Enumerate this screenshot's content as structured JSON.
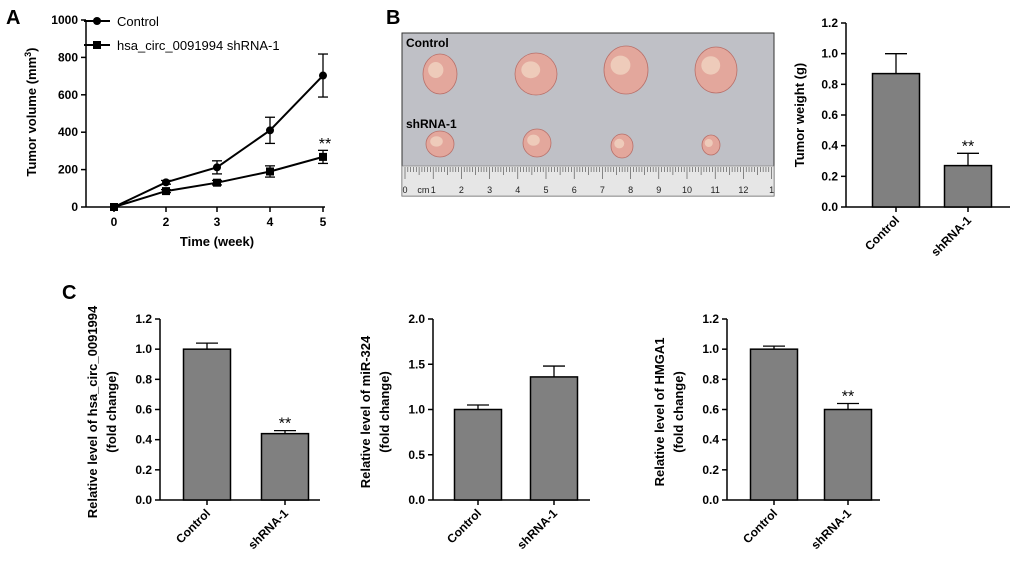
{
  "panels": {
    "a": "A",
    "b": "B",
    "c": "C"
  },
  "photo": {
    "row_control": "Control",
    "row_shrna": "shRNA-1",
    "ruler_unit": "cm",
    "ruler_numbers": [
      "0",
      "1",
      "2",
      "3",
      "4",
      "5",
      "6",
      "7",
      "8",
      "9",
      "10",
      "11",
      "12",
      "1"
    ],
    "colors": {
      "background": "#bfc0c6",
      "tumor": "#e3a79c",
      "tumor_light": "#f0d4c2",
      "ruler": "#e6e6e6"
    }
  },
  "chart_data": [
    {
      "id": "tumor-volume",
      "type": "line",
      "x": [
        0,
        2,
        3,
        4,
        5
      ],
      "series": [
        {
          "name": "Control",
          "marker": "circle",
          "values": [
            0,
            132,
            212,
            410,
            703
          ],
          "errors": [
            0,
            10,
            35,
            70,
            115
          ]
        },
        {
          "name": "hsa_circ_0091994 shRNA-1",
          "marker": "square",
          "values": [
            0,
            85,
            130,
            190,
            268
          ],
          "errors": [
            0,
            8,
            12,
            30,
            35
          ]
        }
      ],
      "xticks": [
        "0",
        "2",
        "3",
        "4",
        "5"
      ],
      "yticks": [
        "0",
        "200",
        "400",
        "600",
        "800",
        "1000"
      ],
      "ylim": [
        0,
        1000
      ],
      "xlabel": "Time (week)",
      "ylabel": "Tumor volume (mm",
      "ylabel_sup": "3",
      "ylabel_end": ")",
      "annotation": "**",
      "legend": "top-left"
    },
    {
      "id": "tumor-weight",
      "type": "bar",
      "categories": [
        "Control",
        "shRNA-1"
      ],
      "values": [
        0.87,
        0.27
      ],
      "errors": [
        0.13,
        0.08
      ],
      "yticks": [
        "0.0",
        "0.2",
        "0.4",
        "0.6",
        "0.8",
        "1.0",
        "1.2"
      ],
      "ylim": [
        0,
        1.2
      ],
      "ylabel": "Tumor weight (g)",
      "annotation": "**",
      "color": "#808080"
    },
    {
      "id": "circ-level",
      "type": "bar",
      "categories": [
        "Control",
        "shRNA-1"
      ],
      "values": [
        1.0,
        0.44
      ],
      "errors": [
        0.04,
        0.02
      ],
      "yticks": [
        "0.0",
        "0.2",
        "0.4",
        "0.6",
        "0.8",
        "1.0",
        "1.2"
      ],
      "ylim": [
        0,
        1.2
      ],
      "ylabel": [
        "Relative level of hsa_circ_0091994",
        "(fold change)"
      ],
      "annotation": "**",
      "color": "#808080"
    },
    {
      "id": "mir-level",
      "type": "bar",
      "categories": [
        "Control",
        "shRNA-1"
      ],
      "values": [
        1.0,
        1.36
      ],
      "errors": [
        0.05,
        0.12
      ],
      "yticks": [
        "0.0",
        "0.5",
        "1.0",
        "1.5",
        "2.0"
      ],
      "ylim": [
        0,
        2.0
      ],
      "ylabel": [
        "Relative level of miR-324",
        "(fold change)"
      ],
      "annotation": "",
      "color": "#808080"
    },
    {
      "id": "hmga1-level",
      "type": "bar",
      "categories": [
        "Control",
        "shRNA-1"
      ],
      "values": [
        1.0,
        0.6
      ],
      "errors": [
        0.02,
        0.04
      ],
      "yticks": [
        "0.0",
        "0.2",
        "0.4",
        "0.6",
        "0.8",
        "1.0",
        "1.2"
      ],
      "ylim": [
        0,
        1.2
      ],
      "ylabel": [
        "Relative level of HMGA1",
        "(fold change)"
      ],
      "annotation": "**",
      "color": "#808080"
    }
  ]
}
